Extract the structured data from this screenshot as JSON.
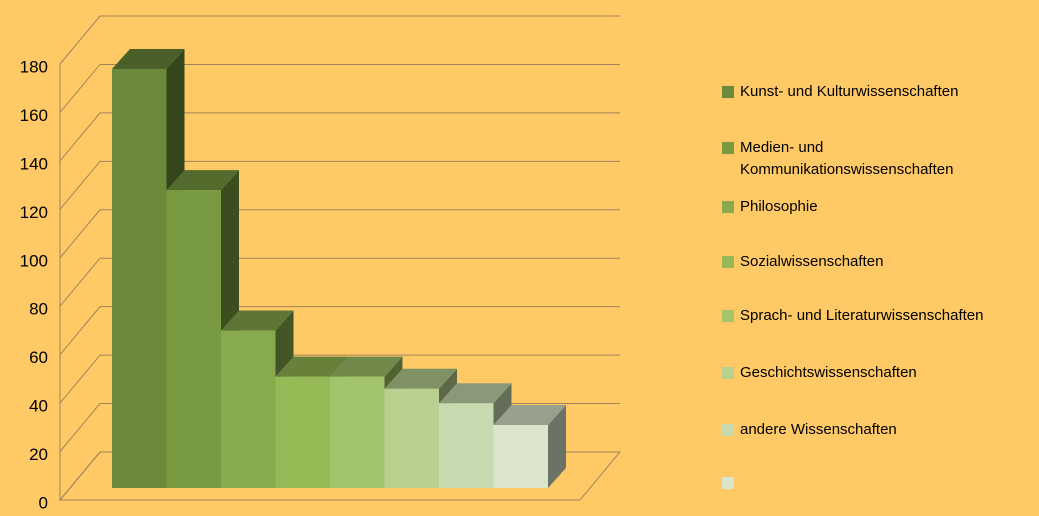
{
  "chart_data": {
    "type": "bar3d",
    "categories": [
      "Kunst- und Kulturwissenschaften",
      "Medien- und Kommunikationswissenschaften",
      "Philosophie",
      "Sozialwissenschaften",
      "Sprach- und Literaturwissenschaften",
      "Geschichtswissenschaften",
      "andere Wissenschaften",
      null
    ],
    "values": [
      173,
      123,
      65,
      46,
      46,
      41,
      35,
      26
    ],
    "colors": [
      "#6b8a3a",
      "#789a40",
      "#86aa4c",
      "#94b955",
      "#a2c46a",
      "#b8d090",
      "#c8dbb0",
      "#dbe5cc"
    ],
    "ylim": [
      0,
      180
    ],
    "yticks": [
      0,
      20,
      40,
      60,
      80,
      100,
      120,
      140,
      160,
      180
    ],
    "grid": true,
    "legend": "right"
  }
}
